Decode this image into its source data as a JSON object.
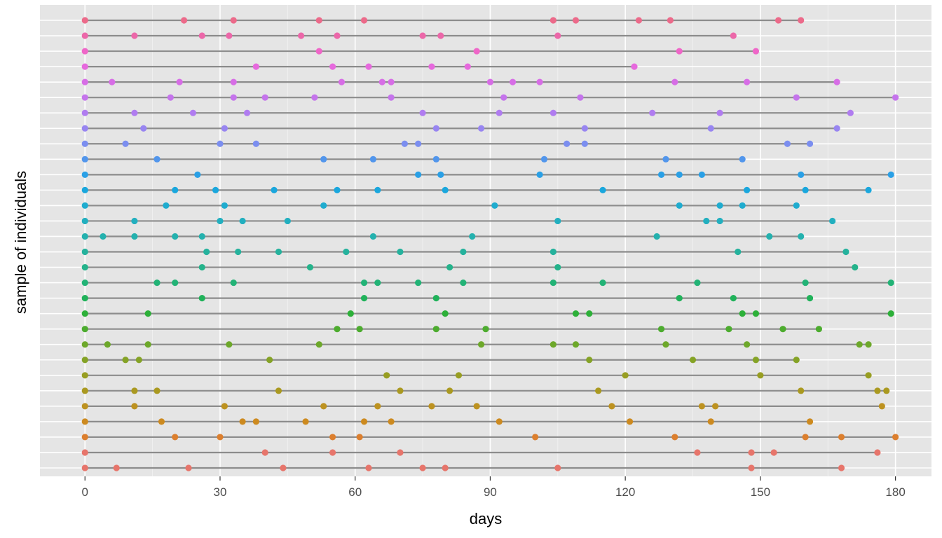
{
  "chart_data": {
    "type": "scatter",
    "xlabel": "days",
    "ylabel": "sample of individuals",
    "xlim": [
      -10,
      188
    ],
    "xticks": [
      0,
      30,
      60,
      90,
      120,
      150,
      180
    ],
    "xtick_labels": [
      "0",
      "30",
      "60",
      "90",
      "120",
      "150",
      "180"
    ],
    "grid": true,
    "panel_background": "#e5e5e5",
    "segment_color": "#8c8c8c",
    "legend": "none",
    "series": [
      {
        "end": 168,
        "events": [
          0,
          7,
          23,
          44,
          63,
          75,
          80,
          105,
          148,
          168
        ],
        "color": "#e7756b"
      },
      {
        "end": 176,
        "events": [
          0,
          40,
          55,
          70,
          136,
          148,
          153,
          176
        ],
        "color": "#e7756b"
      },
      {
        "end": 180,
        "events": [
          0,
          20,
          30,
          55,
          61,
          100,
          131,
          160,
          168,
          180
        ],
        "color": "#dc7f2e"
      },
      {
        "end": 161,
        "events": [
          0,
          17,
          35,
          38,
          49,
          62,
          68,
          92,
          121,
          139,
          161
        ],
        "color": "#cd8a1f"
      },
      {
        "end": 177,
        "events": [
          0,
          11,
          31,
          53,
          65,
          77,
          87,
          117,
          137,
          140,
          177
        ],
        "color": "#bd9220"
      },
      {
        "end": 178,
        "events": [
          0,
          11,
          16,
          43,
          70,
          81,
          114,
          159,
          176,
          178
        ],
        "color": "#aa9920"
      },
      {
        "end": 174,
        "events": [
          0,
          67,
          83,
          120,
          150,
          174
        ],
        "color": "#989e22"
      },
      {
        "end": 158,
        "events": [
          0,
          9,
          12,
          41,
          112,
          135,
          149,
          158
        ],
        "color": "#85a326"
      },
      {
        "end": 174,
        "events": [
          0,
          5,
          14,
          32,
          52,
          88,
          104,
          109,
          129,
          147,
          172,
          174
        ],
        "color": "#6da82a"
      },
      {
        "end": 163,
        "events": [
          0,
          56,
          61,
          78,
          89,
          128,
          143,
          155,
          163
        ],
        "color": "#4dac2f"
      },
      {
        "end": 179,
        "events": [
          0,
          14,
          59,
          80,
          109,
          112,
          146,
          149,
          179
        ],
        "color": "#2db039"
      },
      {
        "end": 161,
        "events": [
          0,
          26,
          62,
          78,
          132,
          144,
          161
        ],
        "color": "#20b25a"
      },
      {
        "end": 179,
        "events": [
          0,
          16,
          20,
          33,
          62,
          65,
          74,
          84,
          104,
          115,
          136,
          160,
          179
        ],
        "color": "#22b376"
      },
      {
        "end": 171,
        "events": [
          0,
          26,
          50,
          81,
          105,
          171
        ],
        "color": "#24b38b"
      },
      {
        "end": 169,
        "events": [
          0,
          27,
          34,
          43,
          58,
          70,
          84,
          104,
          145,
          169
        ],
        "color": "#25b29d"
      },
      {
        "end": 159,
        "events": [
          0,
          4,
          11,
          20,
          26,
          64,
          86,
          127,
          152,
          159
        ],
        "color": "#24b1ae"
      },
      {
        "end": 166,
        "events": [
          0,
          11,
          30,
          35,
          45,
          105,
          138,
          141,
          166
        ],
        "color": "#22afbf"
      },
      {
        "end": 158,
        "events": [
          0,
          18,
          31,
          53,
          91,
          132,
          141,
          146,
          158
        ],
        "color": "#1faccf"
      },
      {
        "end": 174,
        "events": [
          0,
          20,
          29,
          42,
          56,
          65,
          80,
          115,
          147,
          160,
          174
        ],
        "color": "#1aa7dd"
      },
      {
        "end": 179,
        "events": [
          0,
          25,
          74,
          79,
          101,
          128,
          132,
          137,
          159,
          179
        ],
        "color": "#2aa0e6"
      },
      {
        "end": 146,
        "events": [
          0,
          16,
          53,
          64,
          78,
          102,
          129,
          146
        ],
        "color": "#5296ec"
      },
      {
        "end": 161,
        "events": [
          0,
          9,
          30,
          38,
          71,
          74,
          107,
          111,
          156,
          161
        ],
        "color": "#7b8ef0"
      },
      {
        "end": 167,
        "events": [
          0,
          13,
          31,
          78,
          88,
          111,
          139,
          167
        ],
        "color": "#9885f1"
      },
      {
        "end": 170,
        "events": [
          0,
          11,
          24,
          36,
          75,
          92,
          104,
          126,
          141,
          170
        ],
        "color": "#b07cf0"
      },
      {
        "end": 180,
        "events": [
          0,
          19,
          33,
          40,
          51,
          68,
          93,
          110,
          158,
          180
        ],
        "color": "#c574ec"
      },
      {
        "end": 167,
        "events": [
          0,
          6,
          21,
          33,
          57,
          66,
          68,
          90,
          95,
          101,
          131,
          147,
          167
        ],
        "color": "#d76de6"
      },
      {
        "end": 122,
        "events": [
          0,
          38,
          55,
          63,
          77,
          85,
          122
        ],
        "color": "#e669dd"
      },
      {
        "end": 149,
        "events": [
          0,
          52,
          87,
          132,
          149
        ],
        "color": "#ef66c8"
      },
      {
        "end": 144,
        "events": [
          0,
          11,
          26,
          32,
          48,
          56,
          75,
          79,
          105,
          144
        ],
        "color": "#ec67a9"
      },
      {
        "end": 159,
        "events": [
          0,
          22,
          33,
          52,
          62,
          104,
          109,
          123,
          130,
          154,
          159
        ],
        "color": "#ec6a8a"
      }
    ]
  }
}
